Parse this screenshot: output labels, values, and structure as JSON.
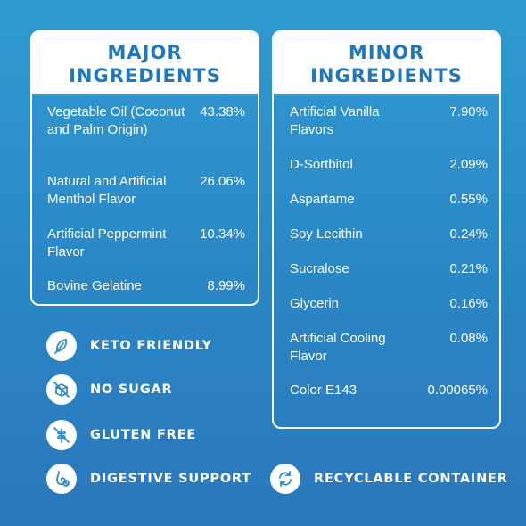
{
  "major": {
    "title_line1": "MAJOR",
    "title_line2": "INGREDIENTS",
    "items": [
      {
        "name": "Vegetable Oil (Coconut and Palm Origin)",
        "pct": "43.38%"
      },
      {
        "name": "Natural and Artificial Menthol Flavor",
        "pct": "26.06%"
      },
      {
        "name": "Artificial Peppermint Flavor",
        "pct": "10.34%"
      },
      {
        "name": "Bovine Gelatine",
        "pct": "8.99%"
      }
    ]
  },
  "minor": {
    "title_line1": "MINOR",
    "title_line2": "INGREDIENTS",
    "items": [
      {
        "name": "Artificial Vanilla Flavors",
        "pct": "7.90%"
      },
      {
        "name": "D-Sortbitol",
        "pct": "2.09%"
      },
      {
        "name": "Aspartame",
        "pct": "0.55%"
      },
      {
        "name": "Soy Lecithin",
        "pct": "0.24%"
      },
      {
        "name": "Sucralose",
        "pct": "0.21%"
      },
      {
        "name": "Glycerin",
        "pct": "0.16%"
      },
      {
        "name": "Artificial Cooling Flavor",
        "pct": "0.08%"
      },
      {
        "name": "Color E143",
        "pct": "0.00065%"
      }
    ]
  },
  "badges": {
    "keto": {
      "label": "KETO FRIENDLY",
      "icon": "leaf-icon"
    },
    "sugar": {
      "label": "NO SUGAR",
      "icon": "no-sugar-icon"
    },
    "gluten": {
      "label": "GLUTEN FREE",
      "icon": "gluten-free-icon"
    },
    "digestive": {
      "label": "DIGESTIVE SUPPORT",
      "icon": "digestive-icon"
    },
    "recycle": {
      "label": "RECYCLABLE CONTAINER",
      "icon": "recycle-icon"
    }
  },
  "colors": {
    "background_top": "#2f9ad2",
    "background_bottom": "#2a77bb",
    "heading_blue": "#1f78bd",
    "card_border": "#ffffff"
  }
}
